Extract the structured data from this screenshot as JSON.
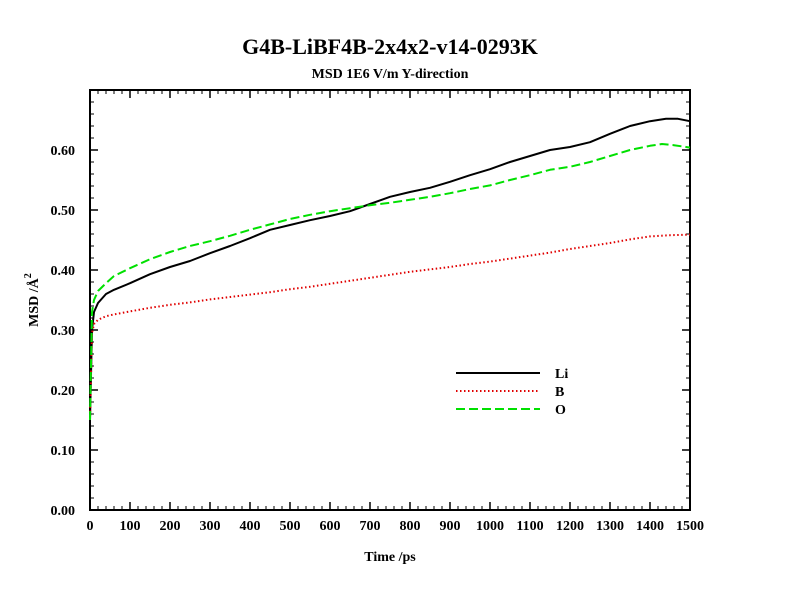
{
  "chart_data": {
    "type": "line",
    "title": "G4B-LiBF4B-2x4x2-v14-0293K",
    "subtitle": "MSD  1E6 V/m Y-direction",
    "xlabel": "Time /ps",
    "ylabel": "MSD /Å",
    "ylabel_superscript": "2",
    "xlim": [
      0,
      1500
    ],
    "ylim": [
      0.0,
      0.7
    ],
    "x_ticks": [
      0,
      100,
      200,
      300,
      400,
      500,
      600,
      700,
      800,
      900,
      1000,
      1100,
      1200,
      1300,
      1400,
      1500
    ],
    "x_tick_labels": [
      "0",
      "100",
      "200",
      "300",
      "400",
      "500",
      "600",
      "700",
      "800",
      "900",
      "1000",
      "1100",
      "1200",
      "1300",
      "1400",
      "1500"
    ],
    "y_ticks": [
      0.0,
      0.1,
      0.2,
      0.3,
      0.4,
      0.5,
      0.6
    ],
    "y_tick_labels": [
      "0.00",
      "0.10",
      "0.20",
      "0.30",
      "0.40",
      "0.50",
      "0.60"
    ],
    "grid": false,
    "legend_position": "middle-right",
    "series": [
      {
        "name": "Li",
        "color": "#000000",
        "dash": "solid",
        "x": [
          0,
          5,
          10,
          20,
          40,
          60,
          100,
          150,
          200,
          250,
          300,
          350,
          400,
          450,
          500,
          550,
          600,
          650,
          700,
          750,
          800,
          850,
          900,
          950,
          1000,
          1050,
          1100,
          1150,
          1200,
          1250,
          1300,
          1350,
          1400,
          1440,
          1470,
          1500
        ],
        "y": [
          0.15,
          0.3,
          0.33,
          0.345,
          0.36,
          0.367,
          0.378,
          0.393,
          0.405,
          0.415,
          0.428,
          0.44,
          0.453,
          0.467,
          0.475,
          0.483,
          0.49,
          0.498,
          0.51,
          0.522,
          0.53,
          0.537,
          0.547,
          0.558,
          0.568,
          0.58,
          0.59,
          0.6,
          0.605,
          0.613,
          0.627,
          0.64,
          0.648,
          0.652,
          0.652,
          0.648
        ]
      },
      {
        "name": "B",
        "color": "#e00000",
        "dash": "dotted",
        "x": [
          0,
          5,
          10,
          20,
          40,
          60,
          100,
          150,
          200,
          250,
          300,
          350,
          400,
          450,
          500,
          550,
          600,
          650,
          700,
          750,
          800,
          850,
          900,
          950,
          1000,
          1050,
          1100,
          1150,
          1200,
          1250,
          1300,
          1350,
          1400,
          1450,
          1500
        ],
        "y": [
          0.15,
          0.295,
          0.31,
          0.317,
          0.323,
          0.326,
          0.331,
          0.337,
          0.342,
          0.346,
          0.351,
          0.355,
          0.359,
          0.363,
          0.368,
          0.372,
          0.377,
          0.382,
          0.387,
          0.392,
          0.397,
          0.401,
          0.405,
          0.41,
          0.414,
          0.419,
          0.424,
          0.429,
          0.435,
          0.44,
          0.445,
          0.451,
          0.456,
          0.458,
          0.459
        ]
      },
      {
        "name": "O",
        "color": "#00e000",
        "dash": "dashed",
        "x": [
          0,
          5,
          10,
          20,
          40,
          60,
          100,
          150,
          200,
          250,
          300,
          350,
          400,
          450,
          500,
          550,
          600,
          650,
          700,
          750,
          800,
          850,
          900,
          950,
          1000,
          1050,
          1100,
          1150,
          1200,
          1250,
          1300,
          1350,
          1400,
          1430,
          1460,
          1500
        ],
        "y": [
          0.15,
          0.33,
          0.35,
          0.365,
          0.378,
          0.39,
          0.403,
          0.418,
          0.43,
          0.44,
          0.448,
          0.457,
          0.467,
          0.476,
          0.485,
          0.492,
          0.498,
          0.503,
          0.508,
          0.512,
          0.517,
          0.522,
          0.528,
          0.535,
          0.541,
          0.55,
          0.558,
          0.567,
          0.572,
          0.58,
          0.59,
          0.6,
          0.607,
          0.61,
          0.608,
          0.604
        ]
      }
    ]
  }
}
